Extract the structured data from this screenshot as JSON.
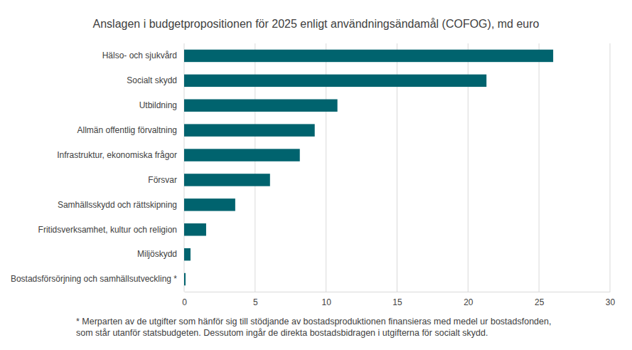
{
  "chart_data": {
    "type": "bar",
    "orientation": "horizontal",
    "title": "Anslagen i budgetpropositionen för 2025 enligt användningsändamål (COFOG), md euro",
    "categories": [
      "Hälso- och sjukvård",
      "Socialt skydd",
      "Utbildning",
      "Allmän offentlig förvaltning",
      "Infrastruktur, ekonomiska frågor",
      "Försvar",
      "Samhällsskydd och rättskipning",
      "Fritidsverksamhet, kultur och religion",
      "Miljöskydd",
      "Bostadsförsörjning och samhällsutveckling *"
    ],
    "values": [
      26.0,
      21.3,
      10.8,
      9.2,
      8.15,
      6.05,
      3.6,
      1.55,
      0.45,
      0.1
    ],
    "color": "#00636e",
    "xlim": [
      0,
      30
    ],
    "xticks": [
      0,
      5,
      10,
      15,
      20,
      25,
      30
    ],
    "grid": true,
    "annotations": [
      "* Merparten av de utgifter som hänför sig till stödjande av bostadsproduktionen finansieras med medel ur bostadsfonden,",
      "som står utanför statsbudgeten. Dessutom ingår de direkta bostadsbidragen i utgifterna för socialt skydd."
    ]
  }
}
